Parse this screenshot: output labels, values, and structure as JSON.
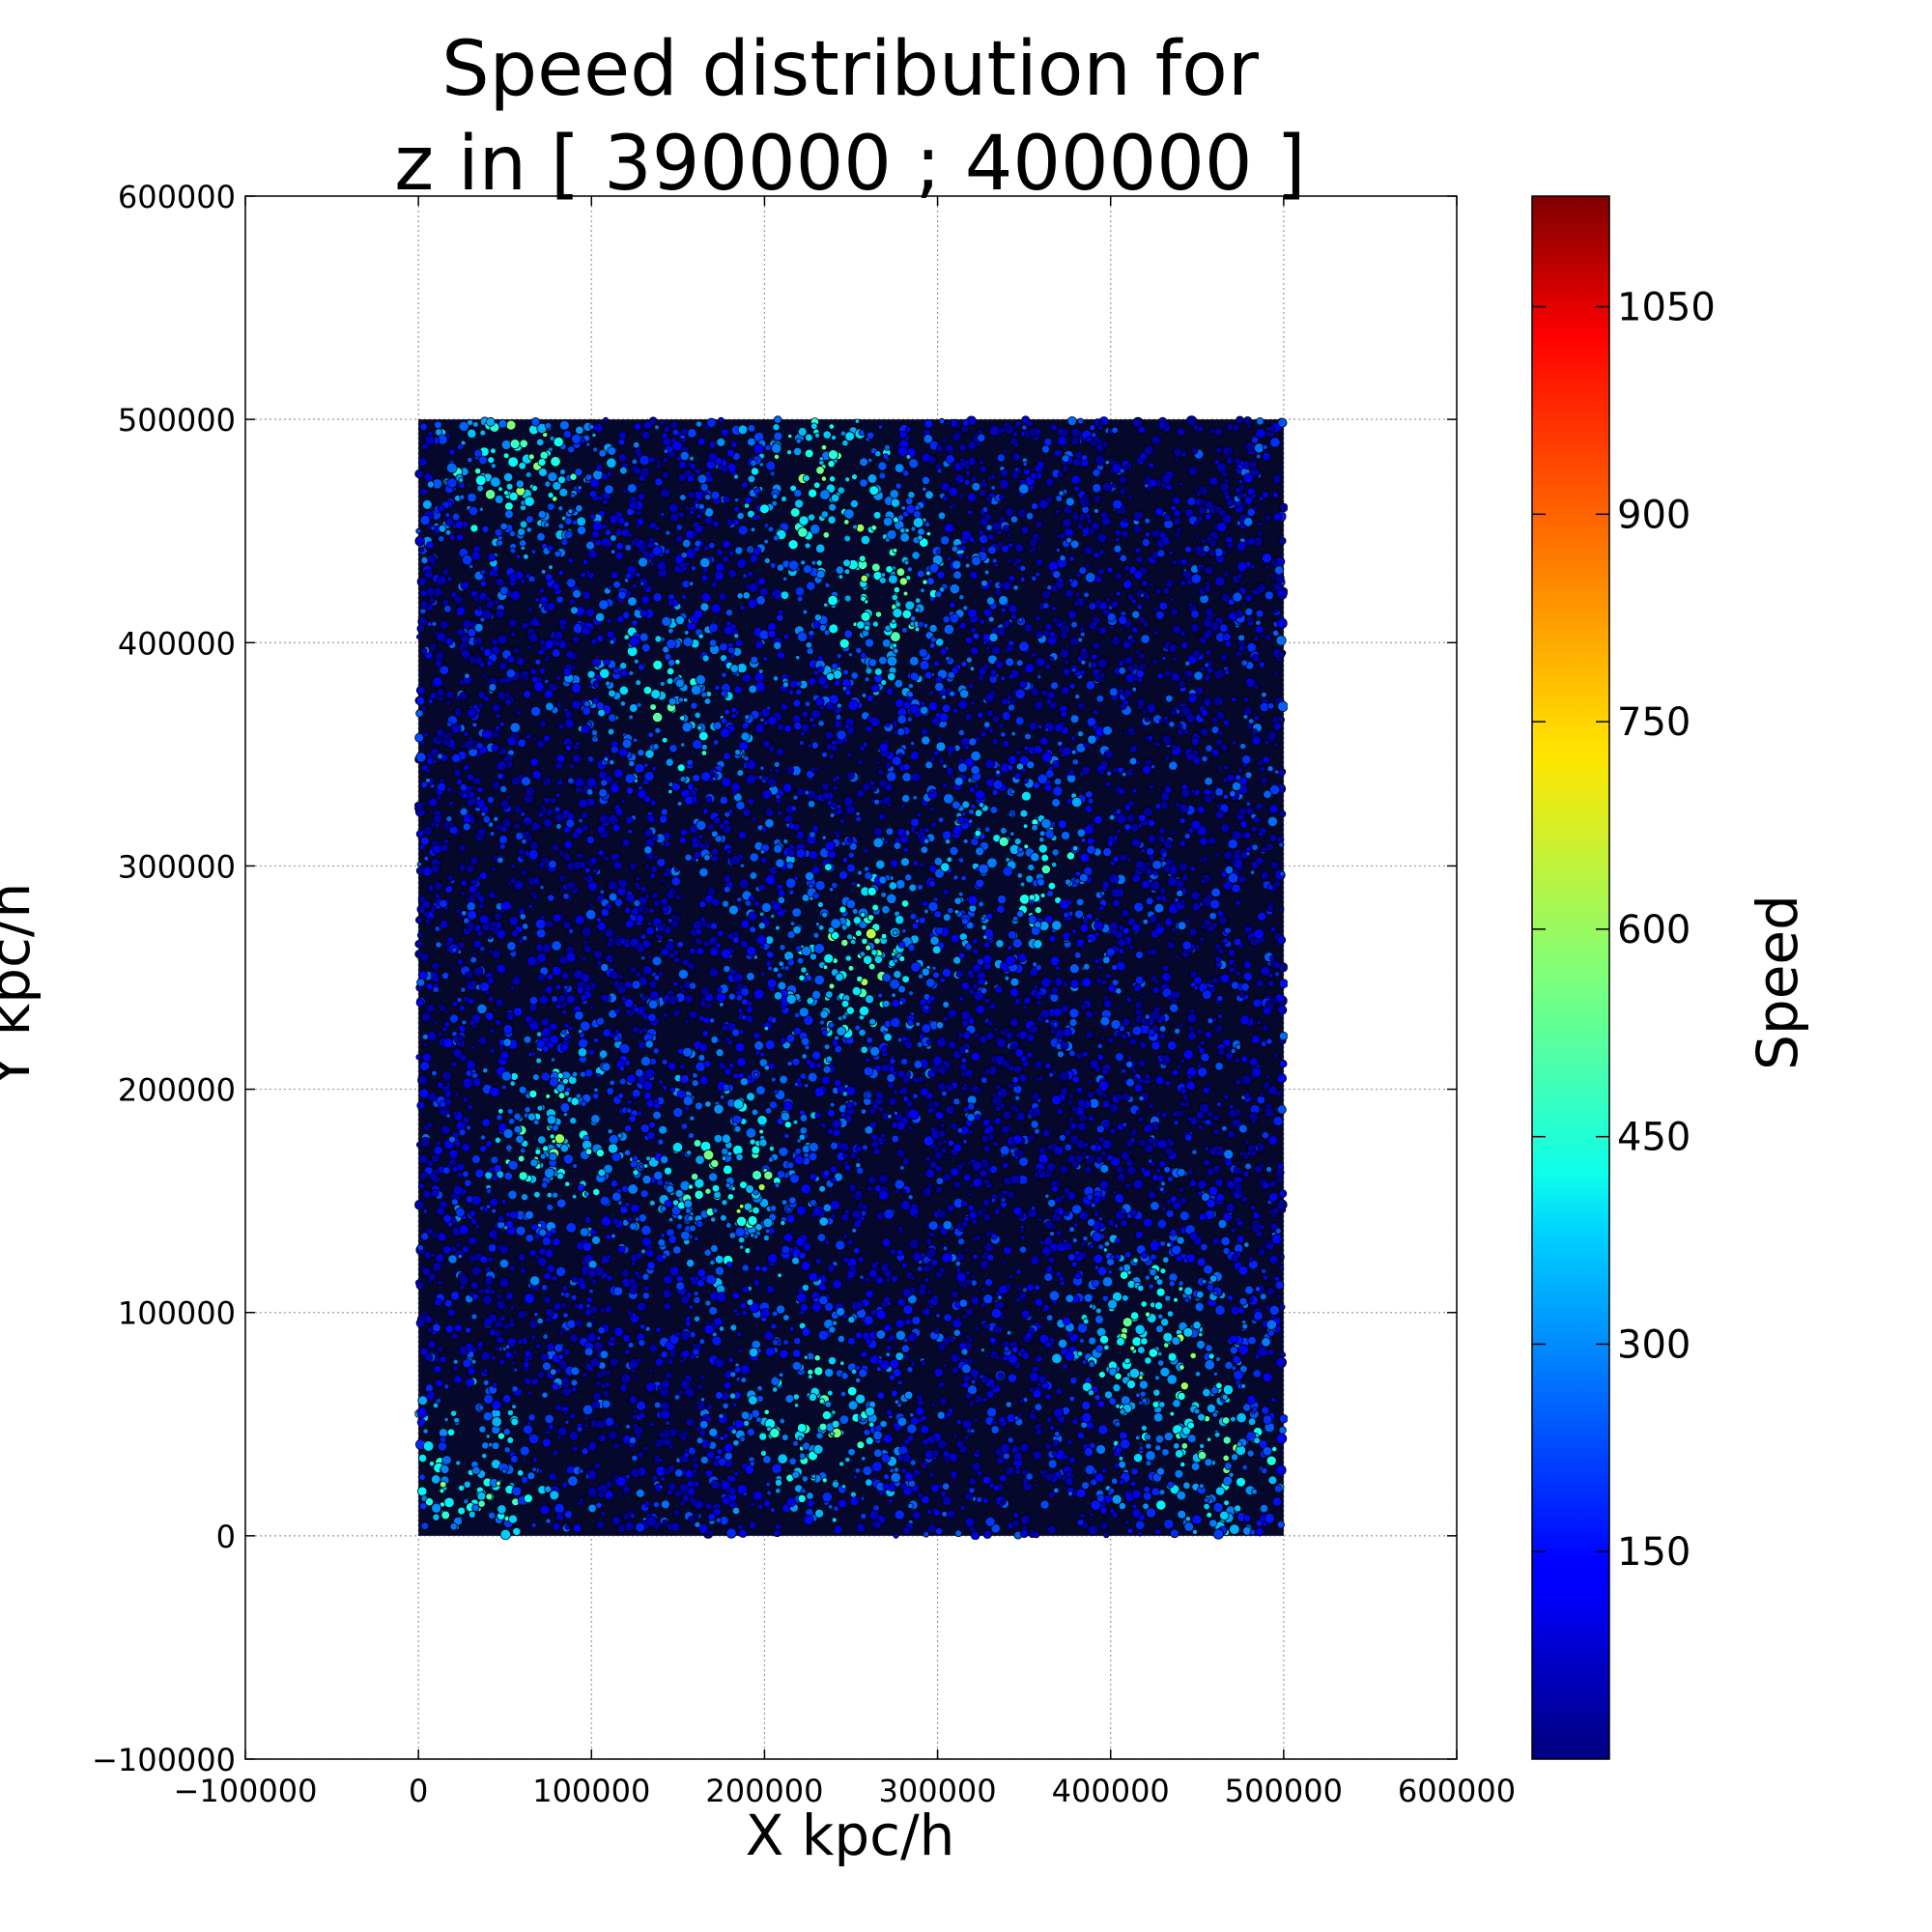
{
  "chart_data": {
    "type": "scatter",
    "title_lines": [
      "Speed distribution for",
      "z in [ 390000 ; 400000 ]"
    ],
    "xlabel": "X kpc/h",
    "ylabel": "Y kpc/h",
    "xlim": [
      -100000,
      600000
    ],
    "ylim": [
      -100000,
      600000
    ],
    "xticks": [
      -100000,
      0,
      100000,
      200000,
      300000,
      400000,
      500000,
      600000
    ],
    "yticks": [
      -100000,
      0,
      100000,
      200000,
      300000,
      400000,
      500000,
      600000
    ],
    "xtick_labels": [
      "−100000",
      "0",
      "100000",
      "200000",
      "300000",
      "400000",
      "500000",
      "600000"
    ],
    "ytick_labels": [
      "−100000",
      "0",
      "100000",
      "200000",
      "300000",
      "400000",
      "500000",
      "600000"
    ],
    "grid": true,
    "data_extent": {
      "x": [
        0,
        500000
      ],
      "y": [
        0,
        500000
      ]
    },
    "colormap": "jet",
    "colorbar": {
      "label": "Speed",
      "range": [
        0,
        1130
      ],
      "ticks": [
        150,
        300,
        450,
        600,
        750,
        900,
        1050
      ],
      "tick_labels": [
        "150",
        "300",
        "450",
        "600",
        "750",
        "900",
        "1050"
      ]
    },
    "point_edge_color": "#000000",
    "typical_speed_range": [
      20,
      700
    ],
    "high_speed_regions": [
      {
        "x": 60000,
        "y": 480000,
        "speed": 650
      },
      {
        "x": 230000,
        "y": 480000,
        "speed": 600
      },
      {
        "x": 270000,
        "y": 420000,
        "speed": 620
      },
      {
        "x": 145000,
        "y": 375000,
        "speed": 560
      },
      {
        "x": 250000,
        "y": 260000,
        "speed": 640
      },
      {
        "x": 350000,
        "y": 300000,
        "speed": 520
      },
      {
        "x": 180000,
        "y": 160000,
        "speed": 640
      },
      {
        "x": 230000,
        "y": 50000,
        "speed": 600
      },
      {
        "x": 420000,
        "y": 90000,
        "speed": 620
      },
      {
        "x": 460000,
        "y": 30000,
        "speed": 560
      },
      {
        "x": 80000,
        "y": 180000,
        "speed": 560
      },
      {
        "x": 30000,
        "y": 20000,
        "speed": 600
      }
    ]
  }
}
